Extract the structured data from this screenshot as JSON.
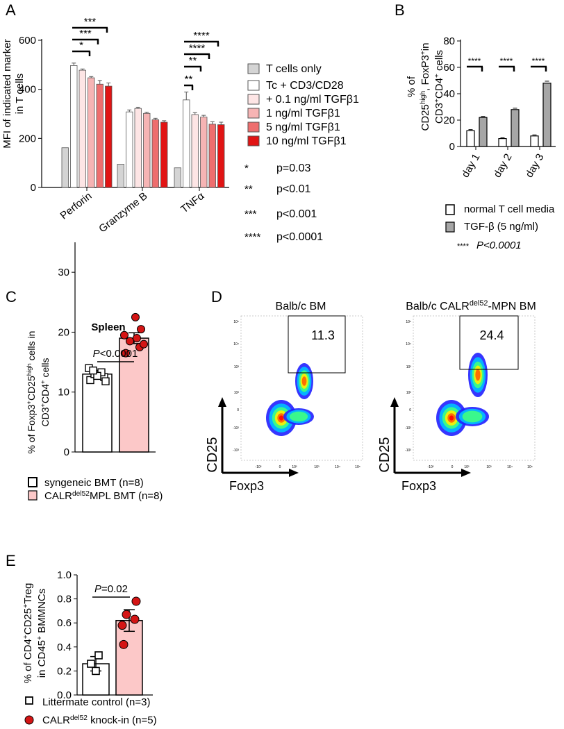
{
  "panels": {
    "A": "A",
    "B": "B",
    "C": "C",
    "D": "D",
    "E": "E"
  },
  "colors": {
    "tc_only": "#d4d4d4",
    "stim": "#ffffff",
    "t01": "#fde5e5",
    "t1": "#f6b4b4",
    "t5": "#ee6e6e",
    "t10": "#e11414",
    "normal_media": "#ffffff",
    "tgfb": "#a6a6a6",
    "syngeneic": "#ffffff",
    "calr": "#fcc8c8",
    "dot_red": "#d41515",
    "text_red": "#e00000"
  },
  "chart_data": [
    {
      "type": "bar",
      "panel": "A",
      "ylabel": "MFI of indicated marker",
      "ylabel2": "in T cells",
      "ylim": [
        0,
        600
      ],
      "yticks": [
        "0",
        "200",
        "400",
        "600"
      ],
      "categories": [
        "Perforin",
        "Granzyme B",
        "TNFα"
      ],
      "series": [
        {
          "name": "T cells only",
          "values": [
            162,
            95,
            80
          ],
          "errors": [
            0,
            0,
            0
          ],
          "color_key": "tc_only"
        },
        {
          "name": "Tc + CD3/CD28",
          "values": [
            497,
            308,
            357
          ],
          "errors": [
            10,
            8,
            32
          ],
          "color_key": "stim"
        },
        {
          "name": "+ 0.1 ng/ml TGFβ1",
          "values": [
            478,
            322,
            297
          ],
          "errors": [
            5,
            5,
            8
          ],
          "color_key": "t01"
        },
        {
          "name": "1 ng/ml TGFβ1",
          "values": [
            447,
            302,
            287
          ],
          "errors": [
            5,
            5,
            7
          ],
          "color_key": "t1"
        },
        {
          "name": "5 ng/ml TGFβ1",
          "values": [
            421,
            276,
            258
          ],
          "errors": [
            15,
            6,
            10
          ],
          "color_key": "t5"
        },
        {
          "name": "10 ng/ml TGFβ1",
          "values": [
            413,
            266,
            256
          ],
          "errors": [
            13,
            6,
            10
          ],
          "color_key": "t10"
        }
      ],
      "significance": [
        {
          "label": "***",
          "group": 0
        },
        {
          "label": "***",
          "group": 0
        },
        {
          "label": "*",
          "group": 0
        },
        {
          "label": "****",
          "group": 2
        },
        {
          "label": "****",
          "group": 2
        },
        {
          "label": "**",
          "group": 2
        },
        {
          "label": "**",
          "group": 2
        }
      ],
      "pvalue_key": [
        {
          "stars": "*",
          "text": "p=0.03"
        },
        {
          "stars": "**",
          "text": "p<0.01"
        },
        {
          "stars": "***",
          "text": "p<0.001"
        },
        {
          "stars": "****",
          "text": "p<0.0001"
        }
      ]
    },
    {
      "type": "bar",
      "panel": "B",
      "ylabel_lines": [
        "% of",
        "CD25high, FoxP3+in",
        "CD3+CD4+ cells"
      ],
      "ylim": [
        0,
        80
      ],
      "yticks": [
        "0",
        "20",
        "40",
        "60",
        "80"
      ],
      "categories": [
        "day 1",
        "day 2",
        "day 3"
      ],
      "series": [
        {
          "name": "normal T cell media",
          "values": [
            12,
            6,
            8
          ],
          "errors": [
            0.8,
            0.6,
            0.8
          ],
          "color_key": "normal_media"
        },
        {
          "name": "TGF-β (5 ng/ml)",
          "values": [
            22,
            28,
            48
          ],
          "errors": [
            0.8,
            1,
            1.5
          ],
          "color_key": "tgfb"
        }
      ],
      "significance": [
        "****",
        "****",
        "****"
      ],
      "pvalue_note_stars": "****",
      "pvalue_note": "P<0.0001"
    },
    {
      "type": "bar",
      "panel": "C",
      "title": "Spleen",
      "ylabel_lines": [
        "% of Foxp3+CD25high cells in",
        "CD3+CD4+ cells"
      ],
      "ylim": [
        0,
        35
      ],
      "yticks": [
        "0",
        "10",
        "20",
        "30"
      ],
      "categories": [
        "syngeneic BMT",
        "CALRdel52MPL BMT"
      ],
      "means": [
        13,
        19
      ],
      "errors": [
        0.5,
        0.9
      ],
      "points": [
        [
          12,
          12.5,
          13,
          13.3,
          14,
          11.8,
          12.7,
          13.6
        ],
        [
          16.5,
          17.5,
          18,
          18.5,
          19,
          19.5,
          20.5,
          22.5
        ]
      ],
      "pvalue": "P<0.0001",
      "legend": [
        {
          "name": "syngeneic BMT (n=8)",
          "color_key": "syngeneic"
        },
        {
          "name": "CALRdel52MPL BMT (n=8)",
          "color_key": "calr"
        }
      ]
    },
    {
      "type": "scatter",
      "panel": "D",
      "plots": [
        {
          "title": "Balb/c BM",
          "gate_value": "11.3",
          "xlabel": "Foxp3",
          "ylabel": "CD25"
        },
        {
          "title": "Balb/c CALRdel52-MPN BM",
          "gate_value": "24.4",
          "xlabel": "Foxp3",
          "ylabel": "CD25"
        }
      ],
      "yticks": [
        "10⁵",
        "10⁴",
        "10³",
        "10²",
        "0",
        "-10²",
        "-10³"
      ],
      "xticks": [
        "-10²",
        "0",
        "10²",
        "10³",
        "10⁴",
        "10⁵"
      ]
    },
    {
      "type": "bar",
      "panel": "E",
      "ylabel_lines": [
        "% of CD4+CD25+Treg",
        "in CD45+ BMMNCs"
      ],
      "ylim": [
        0,
        1
      ],
      "yticks": [
        "0.0",
        "0.2",
        "0.4",
        "0.6",
        "0.8",
        "1.0"
      ],
      "categories": [
        "Littermate control",
        "CALRdel52 knock-in"
      ],
      "means": [
        0.26,
        0.62
      ],
      "errors": [
        0.06,
        0.09
      ],
      "points": [
        [
          0.2,
          0.26,
          0.33
        ],
        [
          0.42,
          0.58,
          0.63,
          0.67,
          0.78
        ]
      ],
      "pvalue": "P=0.02",
      "legend": [
        {
          "name": "Littermate control (n=3)",
          "marker": "square"
        },
        {
          "name": "CALRdel52 knock-in (n=5)",
          "marker": "circle"
        }
      ]
    }
  ]
}
